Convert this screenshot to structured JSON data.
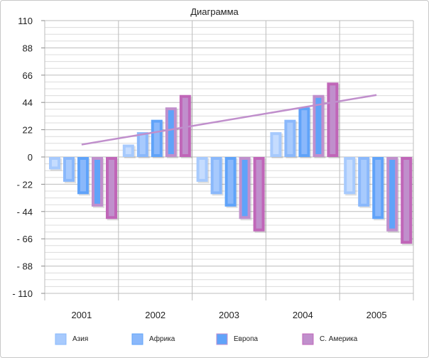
{
  "chart_data": {
    "type": "bar",
    "title": "Диаграмма",
    "categories": [
      "2001",
      "2002",
      "2003",
      "2004",
      "2005"
    ],
    "ylim": [
      -110,
      110
    ],
    "yticks": [
      110,
      88,
      66,
      44,
      22,
      0,
      -22,
      -44,
      -66,
      -88,
      -110
    ],
    "ytick_labels": [
      "110",
      "88",
      "66",
      "44",
      "22",
      "0",
      "- 22",
      "- 44",
      "- 66",
      "- 88",
      "- 110"
    ],
    "grid": true,
    "legend_position": "bottom",
    "series": [
      {
        "name": "Азия",
        "values": [
          -10,
          10,
          -20,
          20,
          -30
        ],
        "fill": "#c5dcfe",
        "border": "#a7cafd"
      },
      {
        "name": "Африка",
        "values": [
          -20,
          20,
          -30,
          30,
          -40
        ],
        "fill": "#a7cafd",
        "border": "#8ab8fb"
      },
      {
        "name": "Европа",
        "values": [
          -30,
          30,
          -40,
          40,
          -50
        ],
        "fill": "#8ab8fb",
        "border": "#60a3f9"
      },
      {
        "name": "С. Америка",
        "values": [
          -40,
          40,
          -50,
          50,
          -60
        ],
        "fill": "#60a3f9",
        "border": "#c08fcc"
      },
      {
        "values": [
          -50,
          50,
          -60,
          60,
          -70
        ],
        "fill": "#c08fcc",
        "border": "#c066b8"
      }
    ],
    "legend": [
      {
        "label": "Азия",
        "fill": "#a7cafd",
        "border": "#8ab8fb"
      },
      {
        "label": "Африка",
        "fill": "#8ab8fb",
        "border": "#60a3f9"
      },
      {
        "label": "Европа",
        "fill": "#60a3f9",
        "border": "#c08fcc"
      },
      {
        "label": "С. Америка",
        "fill": "#c08fcc",
        "border": "#c066b8"
      }
    ],
    "trendline": {
      "start": {
        "x": "2001",
        "y": 10
      },
      "end": {
        "x": "2005",
        "y": 50
      },
      "color": "#c08fcc"
    }
  }
}
